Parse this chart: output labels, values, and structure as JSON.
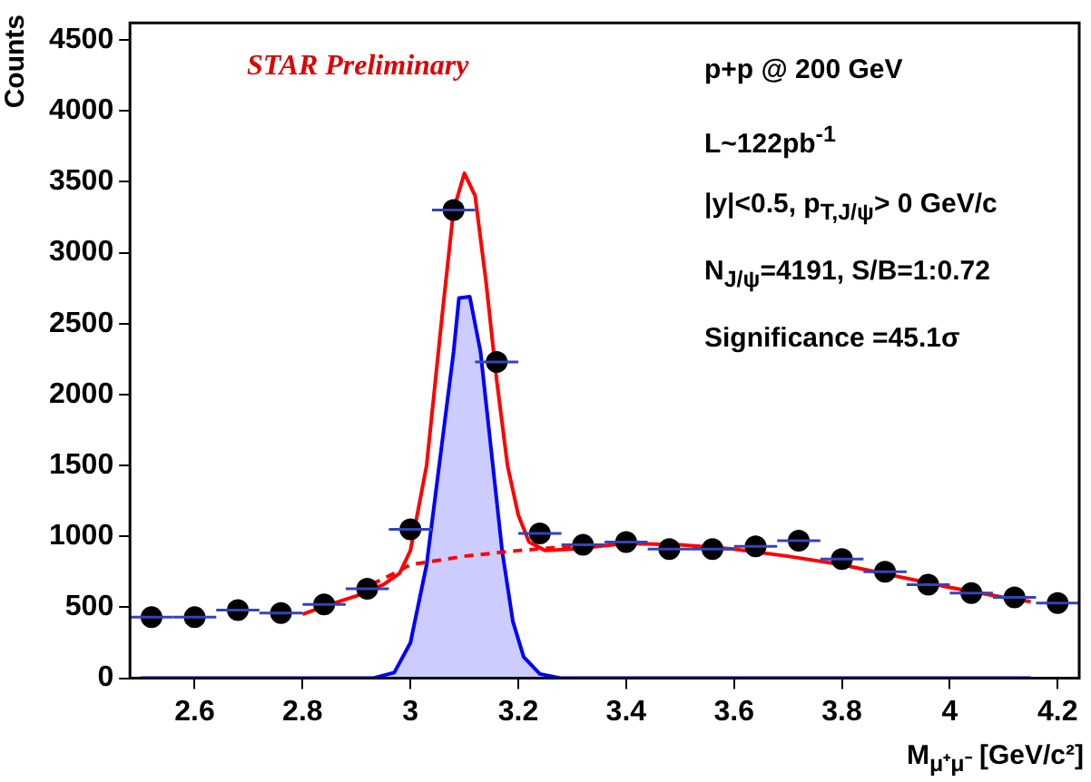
{
  "chart_data": {
    "type": "scatter",
    "xlabel": "M$_{μ⁺μ⁻}$ [GeV/c²]",
    "ylabel": "Counts",
    "xlim": [
      2.48,
      4.24
    ],
    "xticks": [
      2.6,
      2.8,
      3,
      3.2,
      3.4,
      3.6,
      3.8,
      4,
      4.2
    ],
    "ylim": [
      0,
      4620
    ],
    "yticks": [
      0,
      500,
      1000,
      1500,
      2000,
      2500,
      3000,
      3500,
      4000,
      4500
    ],
    "grid": false,
    "legend": false,
    "annotations": [
      "STAR Preliminary",
      "p+p @ 200 GeV",
      "L~122pb$^{-1}$",
      "|y|<0.5, p$_{T,J/ψ}$> 0 GeV/c",
      "N$_{J/ψ}$=4191, S/B=1:0.72",
      "Significance =45.1σ"
    ],
    "series": [
      {
        "type": "area",
        "color": "#0000ff",
        "x": [
          2.5,
          2.93,
          2.97,
          3.0,
          3.03,
          3.06,
          3.08,
          3.09,
          3.11,
          3.13,
          3.15,
          3.17,
          3.19,
          3.21,
          3.24,
          3.28,
          4.15
        ],
        "values": [
          0,
          0,
          40,
          250,
          800,
          1700,
          2300,
          2680,
          2690,
          2300,
          1600,
          900,
          400,
          150,
          30,
          0,
          0
        ]
      },
      {
        "type": "line",
        "color": "#ff0000",
        "line_style": "dashed",
        "x": [
          2.9,
          2.95,
          3.0,
          3.1,
          3.2,
          3.3
        ],
        "values": [
          620,
          700,
          800,
          860,
          900,
          930
        ]
      },
      {
        "type": "line",
        "color": "#ff0000",
        "line_style": "solid",
        "x": [
          2.8,
          2.85,
          2.9,
          2.95,
          2.98,
          3.0,
          3.03,
          3.06,
          3.08,
          3.1,
          3.12,
          3.14,
          3.16,
          3.18,
          3.2,
          3.22,
          3.25,
          3.3,
          3.4,
          3.5,
          3.6,
          3.7,
          3.8,
          3.9,
          4.0,
          4.1,
          4.15
        ],
        "values": [
          450,
          520,
          580,
          660,
          740,
          900,
          1500,
          2600,
          3300,
          3560,
          3400,
          2800,
          2100,
          1500,
          1150,
          960,
          900,
          910,
          950,
          940,
          910,
          860,
          800,
          720,
          640,
          570,
          540
        ]
      },
      {
        "type": "scatter",
        "color": "#000000",
        "marker": "circle",
        "x": [
          2.52,
          2.6,
          2.68,
          2.76,
          2.84,
          2.92,
          3.0,
          3.08,
          3.16,
          3.24,
          3.32,
          3.4,
          3.48,
          3.56,
          3.64,
          3.72,
          3.8,
          3.88,
          3.96,
          4.04,
          4.12,
          4.2
        ],
        "values": [
          430,
          430,
          480,
          460,
          520,
          630,
          1050,
          3300,
          2230,
          1020,
          940,
          960,
          910,
          910,
          930,
          970,
          840,
          750,
          660,
          600,
          570,
          530
        ],
        "xerrors": [
          0.04,
          0.04,
          0.04,
          0.04,
          0.04,
          0.04,
          0.04,
          0.04,
          0.04,
          0.04,
          0.04,
          0.04,
          0.04,
          0.04,
          0.04,
          0.04,
          0.04,
          0.04,
          0.04,
          0.04,
          0.04,
          0.04
        ]
      }
    ]
  }
}
